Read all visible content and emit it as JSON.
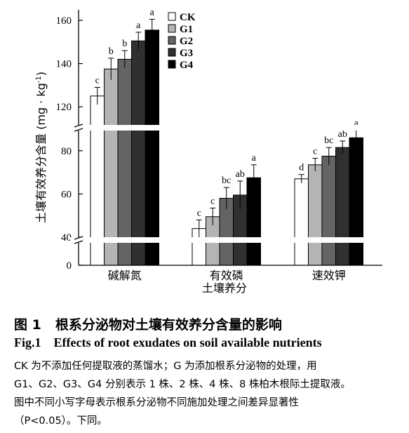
{
  "chart_data": {
    "type": "bar",
    "ylabel": "土壤有效养分含量 (mg · kg",
    "ylabel_sup": "-1",
    "ylabel_close": ")",
    "xlabel": "土壤养分",
    "categories": [
      "碱解氮",
      "有效磷",
      "速效钾"
    ],
    "y_ticks": [
      "0",
      "40",
      "60",
      "80",
      "120",
      "140",
      "160"
    ],
    "y_tick_values": [
      0,
      40,
      60,
      80,
      120,
      140,
      160
    ],
    "axis_break": true,
    "series": [
      {
        "name": "CK",
        "color": "#ffffff",
        "values": [
          125,
          44,
          67
        ],
        "errors": [
          4,
          4,
          2
        ],
        "letters": [
          "c",
          "c",
          "d"
        ]
      },
      {
        "name": "G1",
        "color": "#b4b4b4",
        "values": [
          137.5,
          49.5,
          73.5
        ],
        "errors": [
          5,
          4,
          3
        ],
        "letters": [
          "b",
          "c",
          "c"
        ]
      },
      {
        "name": "G2",
        "color": "#646464",
        "values": [
          142,
          58,
          77.5
        ],
        "errors": [
          4,
          5,
          4
        ],
        "letters": [
          "b",
          "bc",
          "bc"
        ]
      },
      {
        "name": "G3",
        "color": "#303030",
        "values": [
          150.5,
          59.5,
          81.5
        ],
        "errors": [
          4,
          6.5,
          3
        ],
        "letters": [
          "a",
          "ab",
          "ab"
        ]
      },
      {
        "name": "G4",
        "color": "#000000",
        "values": [
          155.5,
          67.5,
          86
        ],
        "errors": [
          5,
          6,
          3.5
        ],
        "letters": [
          "a",
          "a",
          "a"
        ]
      }
    ],
    "legend_position": "top-right",
    "grid": false
  },
  "caption": {
    "cn_label": "图 1",
    "cn_text": "根系分泌物对土壤有效养分含量的影响",
    "en_label": "Fig.1",
    "en_text": "Effects of root exudates on soil available nutrients",
    "notes": [
      "CK 为不添加任何提取液的蒸馏水；G 为添加根系分泌物的处理，用",
      "G1、G2、G3、G4 分别表示 1 株、2 株、4 株、8 株柏木根际土提取液。",
      "图中不同小写字母表示根系分泌物不同施加处理之间差异显著性",
      "（P<0.05）。下同。"
    ]
  }
}
